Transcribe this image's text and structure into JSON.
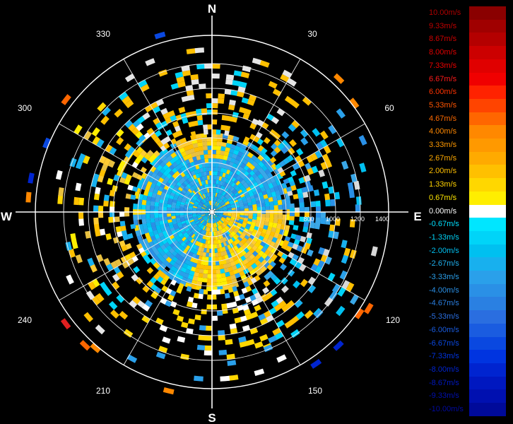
{
  "chart_data": {
    "type": "heatmap",
    "title": "",
    "compass": {
      "n": "N",
      "e": "E",
      "s": "S",
      "w": "W"
    },
    "azimuth_labels": [
      "30",
      "60",
      "120",
      "150",
      "210",
      "240",
      "300",
      "330"
    ],
    "range_labels": [
      "800",
      "1000",
      "1200",
      "1400"
    ],
    "range_max": 1500,
    "colorbar": {
      "labels": [
        "10.00m/s",
        "9.33m/s",
        "8.67m/s",
        "8.00m/s",
        "7.33m/s",
        "6.67m/s",
        "6.00m/s",
        "5.33m/s",
        "4.67m/s",
        "4.00m/s",
        "3.33m/s",
        "2.67m/s",
        "2.00m/s",
        "1.33m/s",
        "0.67m/s",
        "0.00m/s",
        "-0.67m/s",
        "-1.33m/s",
        "-2.00m/s",
        "-2.67m/s",
        "-3.33m/s",
        "-4.00m/s",
        "-4.67m/s",
        "-5.33m/s",
        "-6.00m/s",
        "-6.67m/s",
        "-7.33m/s",
        "-8.00m/s",
        "-8.67m/s",
        "-9.33m/s",
        "-10.00m/s"
      ],
      "colors": [
        "#8a0000",
        "#a00000",
        "#b40000",
        "#cc0000",
        "#e00000",
        "#f00000",
        "#ff2200",
        "#ff4400",
        "#ff6600",
        "#ff8800",
        "#ff9900",
        "#ffaa00",
        "#ffc000",
        "#ffd700",
        "#ffee00",
        "#ffffff",
        "#00e6ff",
        "#00d4f8",
        "#00c0f0",
        "#18b0ee",
        "#2aa0ea",
        "#2a90e6",
        "#2a80e2",
        "#2a6ee0",
        "#1a5ce0",
        "#0a48e0",
        "#0034e0",
        "#0024d0",
        "#0018c0",
        "#0010b0",
        "#000a9a"
      ],
      "label_colors": [
        "#b00000",
        "#c00000",
        "#d00000",
        "#e00000",
        "#ee0000",
        "#ff1a1a",
        "#ff3300",
        "#ff5500",
        "#ff6a00",
        "#ff8800",
        "#ff9900",
        "#ffaa00",
        "#ffbf00",
        "#ffd200",
        "#ffe600",
        "#ffffff",
        "#00e0ff",
        "#00d0f5",
        "#00c0f0",
        "#20b0ee",
        "#2a9fea",
        "#2a90e6",
        "#2a7fe2",
        "#2a6ee0",
        "#1a5ce0",
        "#0a48e0",
        "#0034e0",
        "#0024d0",
        "#0018c0",
        "#0010b0",
        "#000aa0"
      ]
    }
  }
}
